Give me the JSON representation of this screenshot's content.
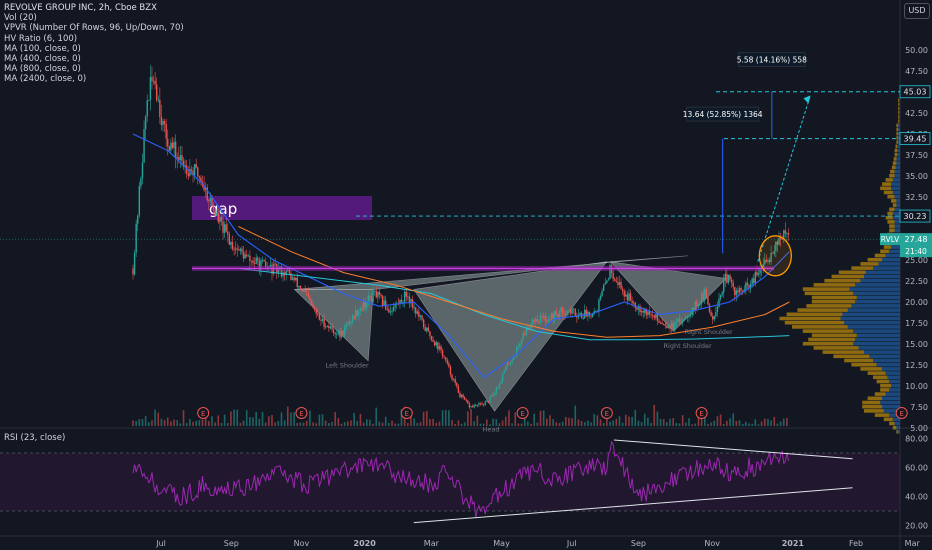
{
  "header": {
    "title": "REVOLVE GROUP INC, 2h, Cboe BZX",
    "indicators": [
      "Vol (20)",
      "VPVR (Number Of Rows, 96, Up/Down, 70)",
      "HV Ratio (6, 100)",
      "MA (100, close, 0)",
      "MA (400, close, 0)",
      "MA (800, close, 0)",
      "MA (2400, close, 0)"
    ],
    "currency": "USD"
  },
  "colors": {
    "background": "#131722",
    "up": "#26a69a",
    "down": "#ef5350",
    "ma100": "#2962ff",
    "ma400": "#26c6da",
    "ma800": "#ff7f2a",
    "rsi": "#9c27b0",
    "gap_box": "#6a1b9a",
    "resistance": "#9c27b0",
    "targets": "#26c6da",
    "pattern_fill": "#b2c7c0",
    "price_tag": "#26a69a"
  },
  "chart_data": [
    {
      "type": "candlestick",
      "title": "REVOLVE GROUP INC, 2h, Cboe BZX",
      "symbol": "RVLV",
      "last_price": "27.48",
      "countdown": "21:40",
      "x_ticks": [
        "Jul",
        "Sep",
        "Nov",
        "2020",
        "Mar",
        "May",
        "Jul",
        "Sep",
        "Nov",
        "2021",
        "Feb",
        "Mar"
      ],
      "y_ticks": [
        "50.00",
        "47.50",
        "45.00",
        "42.50",
        "40.00",
        "37.50",
        "35.00",
        "32.50",
        "30.00",
        "27.50",
        "25.00",
        "22.50",
        "20.00",
        "17.50",
        "15.00",
        "12.50",
        "10.00",
        "7.50",
        "5.00"
      ],
      "ylim": [
        3.6,
        52.5
      ],
      "price_path_months": [
        0,
        0.4,
        0.6,
        0.9,
        1.3,
        1.9,
        2.4,
        2.8,
        3.3,
        3.9,
        4.4,
        4.9,
        5.3,
        5.9,
        6.4,
        6.9,
        7.3,
        7.6,
        7.8,
        8.3,
        8.8,
        9.3,
        9.6,
        10.1,
        10.4,
        10.6,
        10.9,
        11.1,
        11.4,
        11.8,
        12.3,
        12.8,
        13.2,
        13.6,
        14.0,
        14.4,
        14.9,
        15.4,
        15.9,
        16.3,
        16.5,
        16.9,
        17.2,
        17.6,
        17.9,
        18.1,
        18.3,
        18.5,
        18.7
      ],
      "price_path_values": [
        24,
        44,
        47,
        40,
        37,
        35,
        30,
        27,
        25,
        24,
        23.5,
        21,
        18,
        16,
        19,
        21,
        19,
        20,
        21,
        17,
        14,
        9,
        7.5,
        8,
        10,
        12,
        14,
        16,
        18,
        18,
        19,
        18.5,
        19,
        24,
        21,
        19.5,
        18,
        17,
        19,
        21,
        18,
        23,
        21,
        22,
        24,
        25,
        27,
        28,
        27.5
      ],
      "volume_path_months": [
        0.3,
        0.6,
        9.3,
        9.8,
        13.6,
        16.0,
        16.9,
        18.5
      ],
      "volume_path_values": [
        1.0,
        0.8,
        0.6,
        0.5,
        0.9,
        0.5,
        0.6,
        0.4
      ],
      "ma100_months": [
        0,
        1,
        2,
        3,
        4,
        5,
        6,
        7,
        8,
        9,
        10,
        11,
        12,
        13,
        14,
        15,
        16,
        17,
        18,
        18.7
      ],
      "ma100_values": [
        40,
        38,
        34,
        28,
        25,
        23,
        21,
        19.5,
        20,
        16,
        11,
        14,
        18,
        18.5,
        20,
        18.5,
        19,
        20,
        23,
        26
      ],
      "ma400_months": [
        3,
        5,
        7,
        8.5,
        10,
        11.5,
        13,
        14.5,
        16,
        17.5,
        18.7
      ],
      "ma400_values": [
        24,
        23,
        22,
        21,
        18.5,
        16.5,
        15.5,
        15.5,
        15.6,
        15.8,
        16
      ],
      "ma800_months": [
        3,
        4.5,
        6,
        7.5,
        9,
        10.5,
        12,
        13.5,
        15,
        16.5,
        18,
        18.7
      ],
      "ma800_values": [
        29,
        26,
        23.5,
        22,
        20,
        18,
        16.5,
        15.8,
        16,
        17,
        18.5,
        20
      ],
      "gap_label": "gap",
      "resistance_level": 24.0,
      "target_levels": [
        "45.03",
        "39.45",
        "30.23"
      ],
      "measure_labels": [
        "13.64 (52.85%) 1364",
        "5.58 (14.16%) 558"
      ],
      "pattern_labels": [
        "Left Shoulder",
        "Head",
        "Right Shoulder",
        "Right Shoulder"
      ],
      "earnings_marker": "E",
      "volume_profile": {
        "prices": [
          4.5,
          5.0,
          5.5,
          6.0,
          6.5,
          7.0,
          7.5,
          8.0,
          8.5,
          9.0,
          9.5,
          10.0,
          10.5,
          11.0,
          11.5,
          12.0,
          12.5,
          13.0,
          13.5,
          14.0,
          14.5,
          15.0,
          15.5,
          16.0,
          16.5,
          17.0,
          17.5,
          18.0,
          18.5,
          19.0,
          19.5,
          20.0,
          20.5,
          21.0,
          21.5,
          22.0,
          22.5,
          23.0,
          23.5,
          24.0,
          24.5,
          25.0,
          25.5,
          26.0,
          26.5,
          27.0,
          27.5,
          28.0,
          28.5,
          29.0,
          29.5,
          30.0,
          30.5,
          31.0,
          31.5,
          32.0,
          32.5,
          33.0,
          33.5,
          34.0,
          34.5,
          35.0,
          35.5,
          36.0,
          36.5,
          37.0,
          37.5,
          38.0,
          38.5,
          39.0,
          39.5,
          40.0,
          40.5,
          41.0,
          41.5,
          42.0,
          42.5,
          43.0,
          43.5,
          44.0
        ],
        "up": [
          0.02,
          0.04,
          0.06,
          0.08,
          0.12,
          0.18,
          0.2,
          0.22,
          0.2,
          0.16,
          0.12,
          0.1,
          0.12,
          0.14,
          0.16,
          0.2,
          0.26,
          0.3,
          0.34,
          0.4,
          0.46,
          0.52,
          0.5,
          0.48,
          0.52,
          0.58,
          0.62,
          0.66,
          0.64,
          0.58,
          0.54,
          0.5,
          0.48,
          0.52,
          0.56,
          0.5,
          0.44,
          0.4,
          0.38,
          0.3,
          0.24,
          0.2,
          0.16,
          0.12,
          0.1,
          0.08,
          0.08,
          0.08,
          0.06,
          0.06,
          0.06,
          0.08,
          0.08,
          0.06,
          0.04,
          0.04,
          0.06,
          0.08,
          0.1,
          0.1,
          0.08,
          0.06,
          0.06,
          0.05,
          0.04,
          0.04,
          0.03,
          0.03,
          0.03,
          0.02,
          0.02,
          0.02,
          0.02,
          0.02,
          0.01,
          0.01,
          0.01,
          0.01,
          0.01,
          0.01
        ],
        "down": [
          0.02,
          0.04,
          0.06,
          0.1,
          0.16,
          0.22,
          0.22,
          0.2,
          0.16,
          0.12,
          0.1,
          0.12,
          0.14,
          0.16,
          0.2,
          0.24,
          0.28,
          0.32,
          0.4,
          0.46,
          0.5,
          0.56,
          0.52,
          0.5,
          0.56,
          0.62,
          0.66,
          0.68,
          0.62,
          0.56,
          0.5,
          0.48,
          0.5,
          0.54,
          0.52,
          0.46,
          0.4,
          0.36,
          0.3,
          0.24,
          0.2,
          0.16,
          0.12,
          0.1,
          0.08,
          0.08,
          0.08,
          0.06,
          0.06,
          0.06,
          0.08,
          0.08,
          0.06,
          0.06,
          0.04,
          0.06,
          0.08,
          0.1,
          0.12,
          0.1,
          0.08,
          0.06,
          0.05,
          0.04,
          0.04,
          0.03,
          0.03,
          0.03,
          0.02,
          0.02,
          0.02,
          0.02,
          0.02,
          0.02,
          0.01,
          0.01,
          0.01,
          0.01,
          0.01,
          0.01
        ]
      }
    },
    {
      "type": "line",
      "title": "RSI (23, close)",
      "y_ticks": [
        "80.00",
        "60.00",
        "40.00",
        "20.00"
      ],
      "ylim": [
        16,
        82
      ],
      "levels": [
        70,
        30
      ],
      "path_months": [
        0,
        0.5,
        1,
        1.5,
        2,
        2.5,
        3,
        3.5,
        4,
        4.5,
        5,
        5.5,
        6,
        6.5,
        7,
        7.5,
        8,
        8.5,
        9,
        9.5,
        10,
        10.5,
        11,
        11.5,
        12,
        12.5,
        13,
        13.5,
        13.7,
        14,
        14.5,
        15,
        15.5,
        16,
        16.5,
        17,
        17.5,
        18,
        18.5,
        18.7
      ],
      "path_values": [
        62,
        52,
        42,
        40,
        48,
        44,
        46,
        50,
        56,
        52,
        48,
        52,
        58,
        60,
        62,
        55,
        52,
        48,
        58,
        36,
        28,
        44,
        52,
        58,
        50,
        56,
        60,
        62,
        75,
        58,
        42,
        48,
        54,
        58,
        62,
        55,
        60,
        62,
        68,
        66
      ],
      "trendlines": [
        {
          "from": [
            13.7,
            79
          ],
          "to": [
            20.5,
            66
          ]
        },
        {
          "from": [
            8.0,
            22
          ],
          "to": [
            20.5,
            46
          ]
        }
      ]
    }
  ]
}
